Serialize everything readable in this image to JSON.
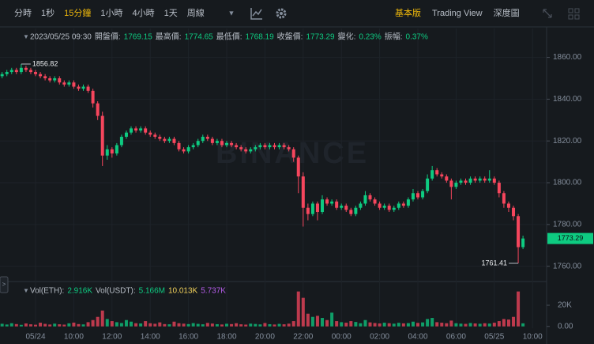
{
  "toolbar": {
    "intervals": [
      "分時",
      "1秒",
      "15分鐘",
      "1小時",
      "4小時",
      "1天",
      "周線"
    ],
    "active_interval": 2,
    "views": [
      "基本版",
      "Trading View",
      "深度圖"
    ],
    "active_view": 0
  },
  "header": {
    "time": "2023/05/25 09:30",
    "open_label": "開盤價:",
    "high_label": "最高價:",
    "low_label": "最低價:",
    "close_label": "收盤價:",
    "change_label": "變化:",
    "change": "0.23%",
    "amplitude_label": "振幅:",
    "amplitude": "0.37%"
  },
  "volume_legend": {
    "eth_label": "Vol(ETH):",
    "eth": "2.916K",
    "usdt_label": "Vol(USDT):",
    "usdt": "5.166M",
    "ma1": "10.013K",
    "ma2": "5.737K"
  },
  "watermark": "BINANCE",
  "chart_data": {
    "type": "candlestick",
    "up_color": "#0ecb81",
    "down_color": "#f6465d",
    "grid": true,
    "xlim": [
      -0.44,
      113.94
    ],
    "xticks": [
      {
        "value": 7,
        "label": "05/24"
      },
      {
        "value": 15,
        "label": "10:00"
      },
      {
        "value": 23,
        "label": "12:00"
      },
      {
        "value": 31,
        "label": "14:00"
      },
      {
        "value": 39,
        "label": "16:00"
      },
      {
        "value": 47,
        "label": "18:00"
      },
      {
        "value": 55,
        "label": "20:00"
      },
      {
        "value": 63,
        "label": "22:00"
      },
      {
        "value": 71,
        "label": "00:00"
      },
      {
        "value": 79,
        "label": "02:00"
      },
      {
        "value": 87,
        "label": "04:00"
      },
      {
        "value": 95,
        "label": "06:00"
      },
      {
        "value": 103,
        "label": "05/25"
      },
      {
        "value": 111,
        "label": "10:00"
      }
    ],
    "ylim": [
      1752.69,
      1873.85
    ],
    "yticks": [
      {
        "value": 1760,
        "label": "1760.00"
      },
      {
        "value": 1780,
        "label": "1780.00"
      },
      {
        "value": 1800,
        "label": "1800.00"
      },
      {
        "value": 1820,
        "label": "1820.00"
      },
      {
        "value": 1840,
        "label": "1840.00"
      },
      {
        "value": 1860,
        "label": "1860.00"
      }
    ],
    "ohlc": [
      [
        1851,
        1853,
        1850,
        1852
      ],
      [
        1852,
        1854,
        1851,
        1853
      ],
      [
        1853,
        1855,
        1852,
        1854
      ],
      [
        1854,
        1855,
        1852,
        1853
      ],
      [
        1853,
        1856.82,
        1852,
        1855
      ],
      [
        1855,
        1856,
        1853,
        1854
      ],
      [
        1854,
        1855,
        1852,
        1853
      ],
      [
        1853,
        1854,
        1851,
        1852
      ],
      [
        1852,
        1853,
        1850,
        1851
      ],
      [
        1851,
        1852,
        1849,
        1850
      ],
      [
        1850,
        1851,
        1848,
        1849
      ],
      [
        1849,
        1851,
        1848,
        1850
      ],
      [
        1850,
        1851,
        1847,
        1848
      ],
      [
        1848,
        1849,
        1846,
        1847
      ],
      [
        1847,
        1849,
        1846,
        1848
      ],
      [
        1848,
        1849,
        1845,
        1846
      ],
      [
        1846,
        1847,
        1844,
        1845
      ],
      [
        1845,
        1847,
        1844,
        1846
      ],
      [
        1846,
        1847,
        1843,
        1844
      ],
      [
        1844,
        1845,
        1836,
        1838
      ],
      [
        1838,
        1839,
        1830,
        1832
      ],
      [
        1832,
        1834,
        1808,
        1813
      ],
      [
        1813,
        1818,
        1811,
        1816
      ],
      [
        1816,
        1817,
        1812,
        1814
      ],
      [
        1814,
        1819,
        1813,
        1818
      ],
      [
        1818,
        1823,
        1817,
        1822
      ],
      [
        1822,
        1825,
        1821,
        1824
      ],
      [
        1824,
        1827,
        1823,
        1826
      ],
      [
        1826,
        1827,
        1824,
        1825
      ],
      [
        1825,
        1827,
        1824,
        1826
      ],
      [
        1826,
        1827,
        1823,
        1824
      ],
      [
        1824,
        1825,
        1822,
        1823
      ],
      [
        1823,
        1824,
        1821,
        1822
      ],
      [
        1822,
        1823,
        1820,
        1821
      ],
      [
        1821,
        1822,
        1819,
        1820
      ],
      [
        1820,
        1822,
        1819,
        1821
      ],
      [
        1821,
        1822,
        1818,
        1819
      ],
      [
        1819,
        1820,
        1815,
        1816
      ],
      [
        1816,
        1817,
        1814,
        1815
      ],
      [
        1815,
        1818,
        1814,
        1817
      ],
      [
        1817,
        1819,
        1816,
        1818
      ],
      [
        1818,
        1821,
        1817,
        1820
      ],
      [
        1820,
        1823,
        1819,
        1822
      ],
      [
        1822,
        1823,
        1820,
        1821
      ],
      [
        1821,
        1822,
        1818,
        1819
      ],
      [
        1819,
        1821,
        1818,
        1820
      ],
      [
        1820,
        1821,
        1817,
        1818
      ],
      [
        1818,
        1820,
        1817,
        1819
      ],
      [
        1819,
        1820,
        1817,
        1818
      ],
      [
        1818,
        1819,
        1816,
        1817
      ],
      [
        1817,
        1818,
        1815,
        1816
      ],
      [
        1816,
        1817,
        1814,
        1815
      ],
      [
        1815,
        1817,
        1814,
        1816
      ],
      [
        1816,
        1818,
        1815,
        1817
      ],
      [
        1817,
        1819,
        1816,
        1818
      ],
      [
        1818,
        1819,
        1816,
        1817
      ],
      [
        1817,
        1819,
        1816,
        1818
      ],
      [
        1818,
        1819,
        1816,
        1817
      ],
      [
        1817,
        1819,
        1816,
        1818
      ],
      [
        1818,
        1819,
        1816,
        1817
      ],
      [
        1817,
        1818,
        1815,
        1816
      ],
      [
        1816,
        1817,
        1810,
        1812
      ],
      [
        1812,
        1813,
        1795,
        1803
      ],
      [
        1803,
        1805,
        1779,
        1788
      ],
      [
        1788,
        1790,
        1782,
        1785
      ],
      [
        1785,
        1791,
        1784,
        1790
      ],
      [
        1790,
        1791,
        1782,
        1786
      ],
      [
        1786,
        1794,
        1785,
        1792
      ],
      [
        1792,
        1793,
        1789,
        1790
      ],
      [
        1790,
        1792,
        1789,
        1791
      ],
      [
        1791,
        1792,
        1787,
        1788
      ],
      [
        1788,
        1790,
        1787,
        1789
      ],
      [
        1789,
        1790,
        1786,
        1787
      ],
      [
        1787,
        1788,
        1784,
        1785
      ],
      [
        1785,
        1789,
        1784,
        1788
      ],
      [
        1788,
        1791,
        1787,
        1790
      ],
      [
        1790,
        1796,
        1789,
        1794
      ],
      [
        1794,
        1795,
        1791,
        1792
      ],
      [
        1792,
        1793,
        1789,
        1790
      ],
      [
        1790,
        1791,
        1787,
        1788
      ],
      [
        1788,
        1790,
        1787,
        1789
      ],
      [
        1789,
        1790,
        1786,
        1787
      ],
      [
        1787,
        1789,
        1786,
        1788
      ],
      [
        1788,
        1791,
        1787,
        1790
      ],
      [
        1790,
        1791,
        1788,
        1789
      ],
      [
        1789,
        1793,
        1788,
        1792
      ],
      [
        1792,
        1797,
        1791,
        1795
      ],
      [
        1795,
        1796,
        1792,
        1793
      ],
      [
        1793,
        1797,
        1792,
        1796
      ],
      [
        1796,
        1804,
        1795,
        1802
      ],
      [
        1802,
        1808,
        1801,
        1806
      ],
      [
        1806,
        1807,
        1803,
        1804
      ],
      [
        1804,
        1805,
        1802,
        1803
      ],
      [
        1803,
        1804,
        1800,
        1801
      ],
      [
        1801,
        1802,
        1792,
        1798
      ],
      [
        1798,
        1801,
        1797,
        1800
      ],
      [
        1800,
        1802,
        1799,
        1801
      ],
      [
        1801,
        1802,
        1799,
        1800
      ],
      [
        1800,
        1803,
        1799,
        1802
      ],
      [
        1802,
        1803,
        1800,
        1801
      ],
      [
        1801,
        1803,
        1800,
        1802
      ],
      [
        1802,
        1803,
        1800,
        1801
      ],
      [
        1801,
        1806,
        1800,
        1802
      ],
      [
        1802,
        1803,
        1799,
        1800
      ],
      [
        1800,
        1801,
        1793,
        1795
      ],
      [
        1795,
        1796,
        1788,
        1790
      ],
      [
        1790,
        1791,
        1786,
        1788
      ],
      [
        1788,
        1789,
        1782,
        1784
      ],
      [
        1784,
        1785,
        1761.41,
        1769.15
      ],
      [
        1769.15,
        1774.65,
        1768.19,
        1773.29
      ]
    ],
    "volume": [
      2500,
      1800,
      3000,
      2200,
      1500,
      2800,
      2000,
      1600,
      3500,
      2400,
      1800,
      2600,
      2000,
      1700,
      2900,
      3600,
      2200,
      1900,
      4000,
      6000,
      9000,
      15000,
      7000,
      5000,
      4000,
      3200,
      6000,
      4500,
      3000,
      2800,
      5000,
      3000,
      2500,
      3800,
      2200,
      2000,
      4500,
      3000,
      2600,
      2200,
      3100,
      2400,
      2000,
      3300,
      2700,
      2100,
      1800,
      2500,
      2200,
      3000,
      2000,
      1700,
      2600,
      2300,
      1900,
      3200,
      2100,
      1800,
      2400,
      2000,
      2600,
      5000,
      33000,
      27000,
      12000,
      9000,
      10000,
      8000,
      6000,
      13000,
      5000,
      4000,
      3500,
      5000,
      4200,
      3000,
      6000,
      3800,
      3200,
      2800,
      3500,
      3000,
      2600,
      3400,
      2900,
      3100,
      4500,
      3300,
      3800,
      7000,
      8000,
      4000,
      3500,
      3000,
      5500,
      3000,
      2600,
      2400,
      3200,
      2800,
      2500,
      3000,
      2700,
      3500,
      5000,
      7000,
      6500,
      9000,
      33000,
      2916
    ],
    "vol_ylim": [
      -1667,
      41667
    ],
    "vol_yticks": [
      {
        "value": 0,
        "label": "0.00"
      },
      {
        "value": 20000,
        "label": "20K"
      }
    ]
  }
}
